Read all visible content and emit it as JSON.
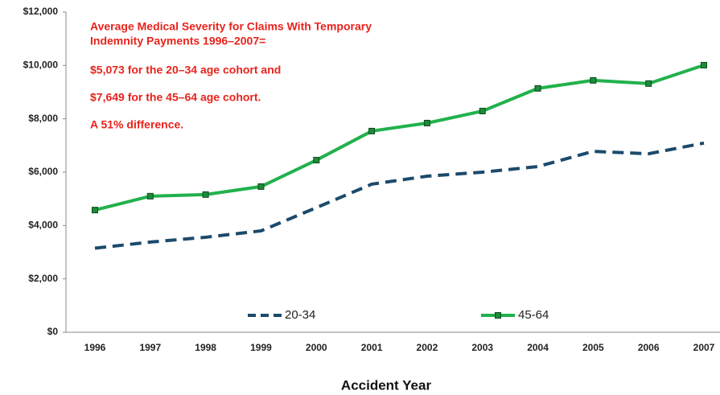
{
  "chart_data": {
    "type": "line",
    "annotation": [
      "Average Medical Severity for Claims With Temporary",
      "Indemnity Payments 1996–2007=",
      "$5,073 for the 20–34 age cohort and",
      "$7,649 for the 45–64 age cohort.",
      "A 51% difference."
    ],
    "xlabel": "Accident Year",
    "categories": [
      "1996",
      "1997",
      "1998",
      "1999",
      "2000",
      "2001",
      "2002",
      "2003",
      "2004",
      "2005",
      "2006",
      "2007"
    ],
    "series": [
      {
        "name": "20-34",
        "color": "#1c4a6b",
        "dashed": true,
        "values": [
          3150,
          3380,
          3560,
          3800,
          4670,
          5550,
          5850,
          6000,
          6210,
          6780,
          6690,
          7090
        ]
      },
      {
        "name": "45-64",
        "color": "#22b14c",
        "marker_color": "#1e8a3a",
        "dashed": false,
        "values": [
          4580,
          5100,
          5160,
          5460,
          6450,
          7540,
          7840,
          8290,
          9140,
          9440,
          9320,
          10010
        ]
      }
    ],
    "ylim": [
      0,
      12000
    ],
    "yticks": [
      {
        "value": 0,
        "label": "$0"
      },
      {
        "value": 2000,
        "label": "$2,000"
      },
      {
        "value": 4000,
        "label": "$4,000"
      },
      {
        "value": 6000,
        "label": "$6,000"
      },
      {
        "value": 8000,
        "label": "$8,000"
      },
      {
        "value": 10000,
        "label": "$10,000"
      },
      {
        "value": 12000,
        "label": "$12,000"
      }
    ]
  }
}
